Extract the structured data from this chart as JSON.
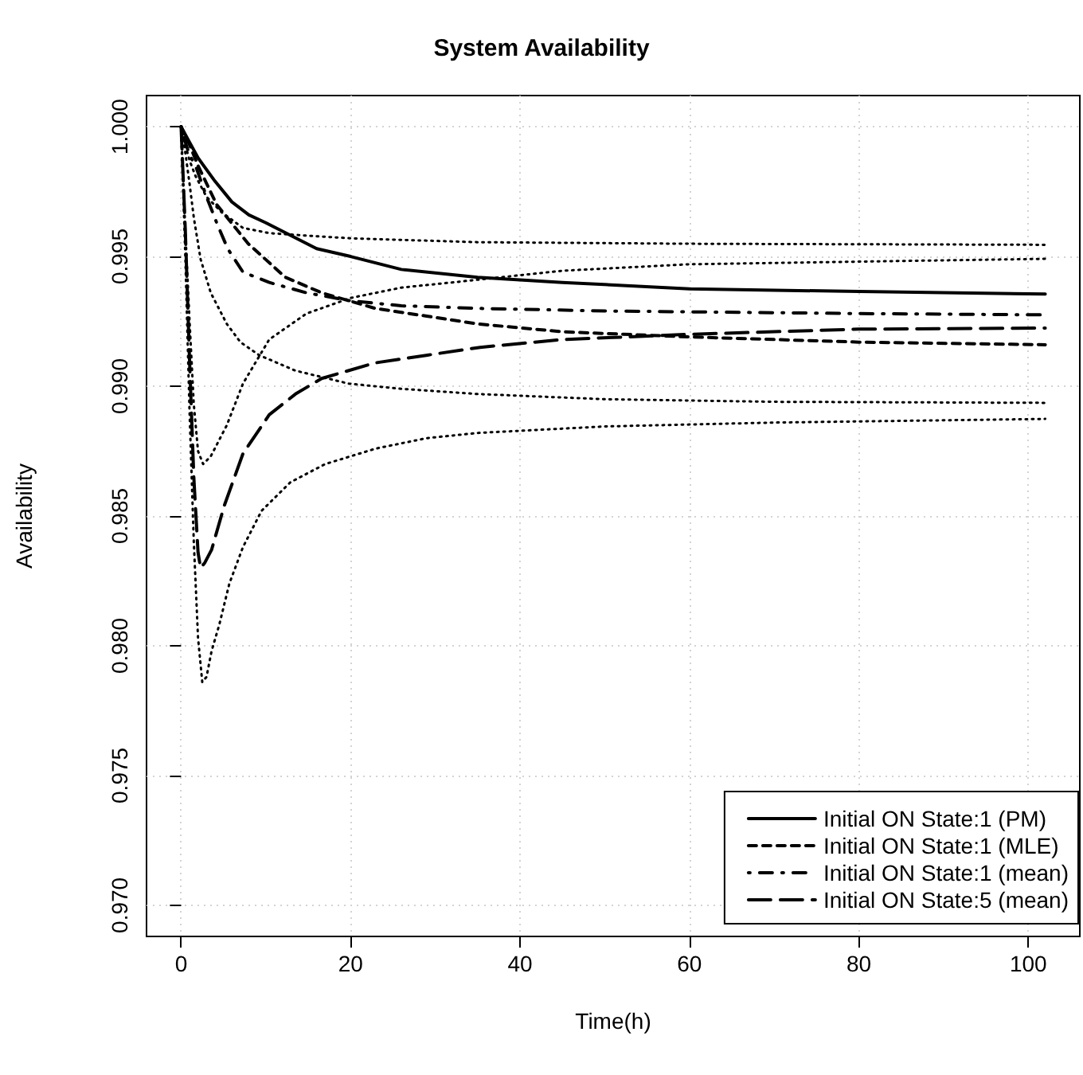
{
  "chart_data": {
    "type": "line",
    "title": "System Availability",
    "xlabel": "Time(h)",
    "ylabel": "Availability",
    "xlim": [
      -4.08,
      106.08
    ],
    "ylim": [
      0.9688,
      1.0012
    ],
    "xticks": [
      0,
      20,
      40,
      60,
      80,
      100
    ],
    "yticks": [
      {
        "value": 0.97,
        "label": "0.970"
      },
      {
        "value": 0.975,
        "label": "0.975"
      },
      {
        "value": 0.98,
        "label": "0.980"
      },
      {
        "value": 0.985,
        "label": "0.985"
      },
      {
        "value": 0.99,
        "label": "0.990"
      },
      {
        "value": 0.995,
        "label": "0.995"
      },
      {
        "value": 1,
        "label": "1.000"
      }
    ],
    "grid": true,
    "legend": "bottom right",
    "marker": "none",
    "series": [
      {
        "name": "Initial ON State:1 (PM)",
        "color": "#000000",
        "line_style": "solid",
        "x": [
          0,
          1,
          2,
          4,
          6,
          8,
          10,
          13,
          16,
          20,
          26,
          35,
          45,
          60,
          80,
          102
        ],
        "values": [
          1.0,
          0.9994,
          0.9988,
          0.9979,
          0.9971,
          0.9966,
          0.9963,
          0.9958,
          0.9953,
          0.995,
          0.9945,
          0.9942,
          0.994,
          0.99375,
          0.99365,
          0.99355
        ]
      },
      {
        "name": "Initial ON State:1 (MLE)",
        "color": "#000000",
        "line_style": "dashed",
        "x": [
          0,
          1,
          2,
          4.2,
          7.9,
          12.3,
          16.6,
          22.9,
          29,
          35,
          45,
          60,
          80,
          102
        ],
        "values": [
          1.0,
          0.9993,
          0.9985,
          0.997,
          0.9955,
          0.9942,
          0.9936,
          0.993,
          0.9927,
          0.9924,
          0.9921,
          0.9919,
          0.9917,
          0.9916
        ]
      },
      {
        "name": "Initial ON State:1 (mean)",
        "color": "#000000",
        "line_style": "dashdot",
        "x": [
          0,
          0.5,
          1,
          1.7,
          3,
          4.2,
          5.5,
          7.3,
          10.4,
          14.8,
          19.8,
          26,
          35,
          50,
          80,
          102
        ],
        "values": [
          1.0,
          0.9994,
          0.9989,
          0.9985,
          0.9973,
          0.9963,
          0.9953,
          0.9944,
          0.994,
          0.9936,
          0.9933,
          0.9931,
          0.993,
          0.9929,
          0.9928,
          0.99275
        ]
      },
      {
        "name": "Initial ON State:5 (mean)",
        "color": "#000000",
        "line_style": "longdash",
        "x": [
          0,
          0.5,
          1,
          1.5,
          2,
          2.3,
          2.8,
          3.6,
          5.1,
          7.3,
          10.4,
          13.5,
          16.6,
          22.9,
          29.1,
          35.3,
          45,
          60,
          80,
          102
        ],
        "values": [
          1.0,
          0.996,
          0.991,
          0.9865,
          0.9836,
          0.983,
          0.9832,
          0.9837,
          0.9854,
          0.9874,
          0.9889,
          0.9897,
          0.9903,
          0.9909,
          0.9912,
          0.9915,
          0.9918,
          0.992,
          0.9922,
          0.99224
        ]
      },
      {
        "color": "#000000",
        "line_style": "dotted",
        "x": [
          0,
          0.5,
          1,
          1.7,
          3,
          4.8,
          7.3,
          10.4,
          15,
          20,
          35,
          60,
          80,
          102
        ],
        "values": [
          1.0,
          0.9993,
          0.9987,
          0.9981,
          0.9973,
          0.9967,
          0.9961,
          0.9959,
          0.9958,
          0.9957,
          0.99555,
          0.99549,
          0.99547,
          0.99545
        ]
      },
      {
        "color": "#000000",
        "line_style": "dotted",
        "x": [
          0,
          0.5,
          1,
          1.5,
          2,
          2.6,
          3.5,
          5.4,
          7.3,
          10.4,
          14.8,
          20,
          26,
          32,
          45,
          60,
          80,
          102
        ],
        "values": [
          1.0,
          0.996,
          0.9925,
          0.9893,
          0.9875,
          0.987,
          0.9873,
          0.9885,
          0.9901,
          0.9918,
          0.9928,
          0.9934,
          0.9938,
          0.994,
          0.99445,
          0.9947,
          0.9948,
          0.99491
        ]
      },
      {
        "color": "#000000",
        "line_style": "dotted",
        "x": [
          0,
          0.5,
          1,
          1.5,
          2.3,
          3.5,
          5.4,
          7,
          9.2,
          13.5,
          19.8,
          26,
          35,
          50,
          70,
          102
        ],
        "values": [
          1.0,
          0.999,
          0.9978,
          0.9965,
          0.9949,
          0.9936,
          0.9924,
          0.9917,
          0.9912,
          0.9906,
          0.9901,
          0.9899,
          0.9897,
          0.9895,
          0.9894,
          0.98936
        ]
      },
      {
        "color": "#000000",
        "line_style": "dotted",
        "x": [
          0,
          0.5,
          1,
          1.5,
          2,
          2.5,
          3,
          3.6,
          4.5,
          5.7,
          7.3,
          9.5,
          12.9,
          17,
          23,
          29,
          35,
          50,
          70,
          102
        ],
        "values": [
          1.0,
          0.995,
          0.989,
          0.984,
          0.9803,
          0.9786,
          0.9788,
          0.9798,
          0.9808,
          0.9824,
          0.9838,
          0.9852,
          0.9863,
          0.987,
          0.9876,
          0.988,
          0.9882,
          0.98845,
          0.9886,
          0.98874
        ]
      }
    ]
  }
}
